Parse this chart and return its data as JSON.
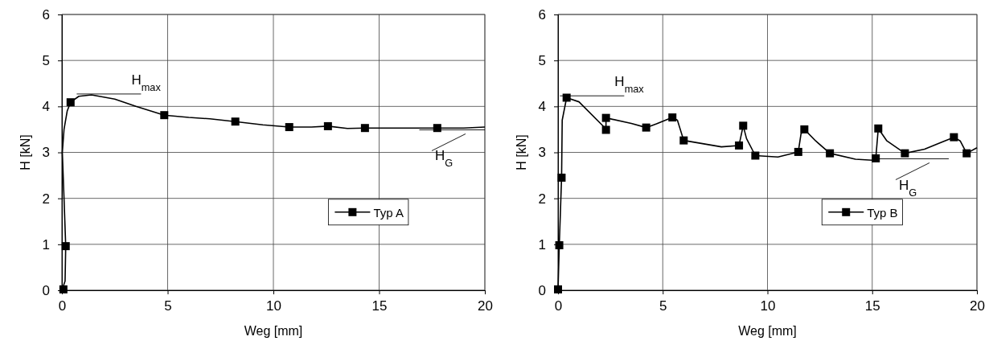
{
  "chart_data": [
    {
      "type": "line",
      "xlabel": "Weg [mm]",
      "ylabel": "H [kN]",
      "xlim": [
        0,
        20
      ],
      "ylim": [
        0,
        6
      ],
      "xticks": [
        0,
        5,
        10,
        15,
        20
      ],
      "yticks": [
        0,
        1,
        2,
        3,
        4,
        5,
        6
      ],
      "grid": true,
      "legend": "bottom right",
      "annotations": [
        {
          "text": "H$_{max}$",
          "x": 0.7,
          "y": 4.27
        },
        {
          "text": "H$_{G}$",
          "x": 16.9,
          "y": 3.49
        }
      ],
      "series": [
        {
          "type": "line",
          "color": "#000000",
          "marker": "none",
          "x": [
            0,
            0.15,
            0.18,
            0.1,
            0.02,
            0.1,
            0.25,
            0.41,
            0.8,
            1.4,
            2.5,
            3.5,
            4.84,
            6,
            7,
            8.2,
            9.5,
            10.75,
            11.8,
            12.58,
            13.5,
            14.33,
            16,
            17.75,
            19,
            20
          ],
          "values": [
            0,
            0.2,
            0.96,
            2.0,
            3.0,
            3.5,
            3.9,
            4.09,
            4.22,
            4.25,
            4.16,
            4.0,
            3.81,
            3.76,
            3.73,
            3.67,
            3.6,
            3.55,
            3.55,
            3.57,
            3.52,
            3.53,
            3.53,
            3.53,
            3.53,
            3.55
          ]
        },
        {
          "type": "scatter",
          "name": "Typ A",
          "color": "#000000",
          "marker": "square",
          "x": [
            0.07,
            0.18,
            0.41,
            4.84,
            8.2,
            10.75,
            12.58,
            14.33,
            17.75
          ],
          "values": [
            0.02,
            0.96,
            4.09,
            3.81,
            3.67,
            3.55,
            3.57,
            3.53,
            3.53
          ]
        }
      ]
    },
    {
      "type": "line",
      "xlabel": "Weg [mm]",
      "ylabel": "H [kN]",
      "xlim": [
        0,
        20
      ],
      "ylim": [
        0,
        6
      ],
      "xticks": [
        0,
        5,
        10,
        15,
        20
      ],
      "yticks": [
        0,
        1,
        2,
        3,
        4,
        5,
        6
      ],
      "grid": true,
      "legend": "bottom right",
      "annotations": [
        {
          "text": "H$_{max}$",
          "x": 0.09,
          "y": 4.23
        },
        {
          "text": "H$_{G}$",
          "x": 15.2,
          "y": 2.86
        }
      ],
      "series": [
        {
          "type": "line",
          "color": "#000000",
          "marker": "none",
          "x": [
            0,
            0.06,
            0.17,
            0.2,
            0.41,
            1,
            2.2,
            2.29,
            2.29,
            3.5,
            4.21,
            4.7,
            5.46,
            5.7,
            6.0,
            7.8,
            8.64,
            8.84,
            9.0,
            9.42,
            10.5,
            11.47,
            11.6,
            11.76,
            12.3,
            12.98,
            14.2,
            15.0,
            15.17,
            15.29,
            15.7,
            16.56,
            17.5,
            18.3,
            18.9,
            19.2,
            19.51,
            20
          ],
          "values": [
            0,
            0.98,
            2.45,
            3.7,
            4.19,
            4.1,
            3.55,
            3.49,
            3.75,
            3.63,
            3.54,
            3.62,
            3.76,
            3.7,
            3.26,
            3.12,
            3.15,
            3.58,
            3.3,
            2.93,
            2.9,
            3.01,
            3.4,
            3.5,
            3.25,
            2.98,
            2.85,
            2.83,
            2.87,
            3.52,
            3.25,
            2.98,
            3.07,
            3.22,
            3.33,
            3.25,
            2.98,
            3.1
          ]
        },
        {
          "type": "scatter",
          "name": "Typ B",
          "color": "#000000",
          "marker": "square",
          "x": [
            0,
            0.06,
            0.17,
            0.41,
            2.29,
            2.29,
            4.21,
            5.46,
            6.0,
            8.64,
            8.84,
            9.42,
            11.47,
            11.76,
            12.98,
            15.17,
            15.29,
            16.56,
            18.9,
            19.51
          ],
          "values": [
            0.02,
            0.98,
            2.45,
            4.19,
            3.75,
            3.49,
            3.54,
            3.76,
            3.26,
            3.15,
            3.58,
            2.93,
            3.01,
            3.5,
            2.98,
            2.87,
            3.52,
            2.98,
            3.33,
            2.98
          ]
        }
      ]
    }
  ]
}
